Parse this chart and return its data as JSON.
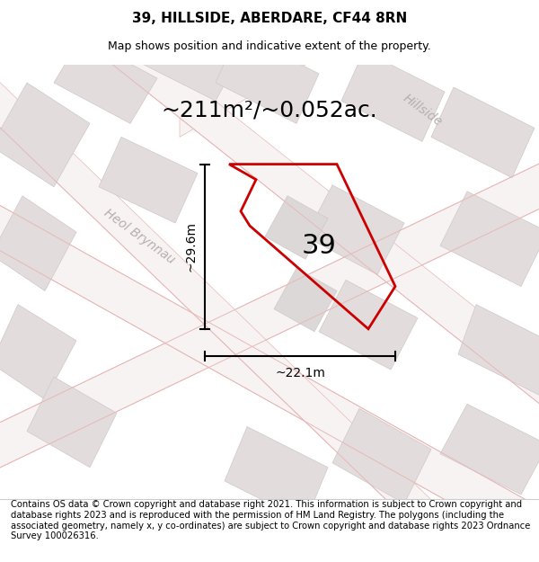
{
  "title": "39, HILLSIDE, ABERDARE, CF44 8RN",
  "subtitle": "Map shows position and indicative extent of the property.",
  "area_text": "~211m²/~0.052ac.",
  "label_39": "39",
  "dim_height": "~29.6m",
  "dim_width": "~22.1m",
  "footer": "Contains OS data © Crown copyright and database right 2021. This information is subject to Crown copyright and database rights 2023 and is reproduced with the permission of HM Land Registry. The polygons (including the associated geometry, namely x, y co-ordinates) are subject to Crown copyright and database rights 2023 Ordnance Survey 100026316.",
  "bg_color": "#f0eded",
  "building_color": "#e2dcdc",
  "building_edge": "#d0c8c8",
  "road_fill": "#f7f3f3",
  "road_line_color": "#e8b8b8",
  "plot_color": "#cc0000",
  "title_fontsize": 11,
  "subtitle_fontsize": 9,
  "area_fontsize": 18,
  "label_fontsize": 22,
  "footer_fontsize": 7.2,
  "street_label_color": "#b8aeae",
  "street_label_fontsize": 10
}
